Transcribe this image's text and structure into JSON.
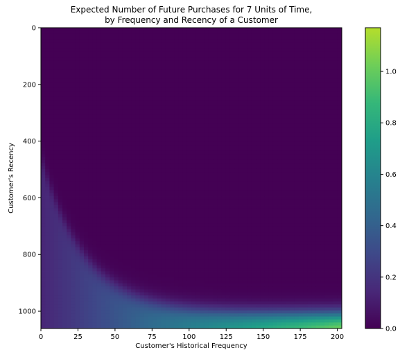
{
  "chart_data": {
    "type": "heatmap",
    "title": "Expected Number of Future Purchases for 7 Units of Time,",
    "subtitle": "by Frequency and Recency of a Customer",
    "xlabel": "Customer's Historical Frequency",
    "ylabel": "Customer's Recency",
    "xlim": [
      0,
      203
    ],
    "ylim": [
      1061,
      0
    ],
    "xticks": [
      0,
      25,
      50,
      75,
      100,
      125,
      150,
      175,
      200
    ],
    "yticks": [
      0,
      200,
      400,
      600,
      800,
      1000
    ],
    "colorbar": {
      "range": [
        0.0,
        1.17
      ],
      "ticks": [
        0.0,
        0.2,
        0.4,
        0.6,
        0.8,
        1.0
      ],
      "tick_labels": [
        "0.0",
        "0.2",
        "0.4",
        "0.6",
        "0.8",
        "1.0"
      ],
      "colormap": "viridis"
    },
    "value_samples": [
      {
        "frequency": 0,
        "recency": 1040,
        "value": 0.15
      },
      {
        "frequency": 25,
        "recency": 1000,
        "value": 0.2
      },
      {
        "frequency": 50,
        "recency": 1040,
        "value": 0.35
      },
      {
        "frequency": 75,
        "recency": 1040,
        "value": 0.5
      },
      {
        "frequency": 100,
        "recency": 1040,
        "value": 0.65
      },
      {
        "frequency": 125,
        "recency": 1040,
        "value": 0.8
      },
      {
        "frequency": 150,
        "recency": 1040,
        "value": 0.95
      },
      {
        "frequency": 190,
        "recency": 1040,
        "value": 1.12
      },
      {
        "frequency": 100,
        "recency": 600,
        "value": 0.0
      }
    ]
  }
}
